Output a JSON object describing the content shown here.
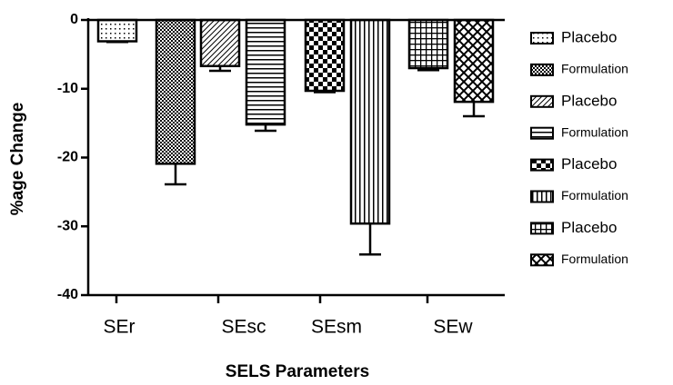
{
  "chart_data": {
    "type": "bar",
    "x_label": "SELS Parameters",
    "y_label": "%age Change",
    "categories": [
      "SEr",
      "SEsc",
      "SEsm",
      "SEw"
    ],
    "ylim": [
      -40,
      0
    ],
    "yticks": [
      0,
      -10,
      -20,
      -30,
      -40
    ],
    "series": [
      {
        "name": "Placebo",
        "pattern": "dots",
        "values": [
          -3.1,
          null,
          null,
          null
        ],
        "errors": [
          0.1,
          null,
          null,
          null
        ]
      },
      {
        "name": "Formulation",
        "pattern": "finecheck",
        "values": [
          -20.9,
          null,
          null,
          null
        ],
        "errors": [
          3.0,
          null,
          null,
          null
        ]
      },
      {
        "name": "Placebo",
        "pattern": "diagonal",
        "values": [
          null,
          -6.7,
          null,
          null
        ],
        "errors": [
          null,
          0.7,
          null,
          null
        ]
      },
      {
        "name": "Formulation",
        "pattern": "horizontal",
        "values": [
          null,
          -15.2,
          null,
          null
        ],
        "errors": [
          null,
          0.9,
          null,
          null
        ]
      },
      {
        "name": "Placebo",
        "pattern": "bigcheck",
        "values": [
          null,
          null,
          -10.3,
          null
        ],
        "errors": [
          null,
          null,
          0.2,
          null
        ]
      },
      {
        "name": "Formulation",
        "pattern": "vertical",
        "values": [
          null,
          null,
          -29.6,
          null
        ],
        "errors": [
          null,
          null,
          4.5,
          null
        ]
      },
      {
        "name": "Placebo",
        "pattern": "grid",
        "values": [
          null,
          null,
          null,
          -7.0
        ],
        "errors": [
          null,
          null,
          null,
          0.3
        ]
      },
      {
        "name": "Formulation",
        "pattern": "crosshatch",
        "values": [
          null,
          null,
          null,
          -11.9
        ],
        "errors": [
          null,
          null,
          null,
          2.1
        ]
      }
    ]
  }
}
